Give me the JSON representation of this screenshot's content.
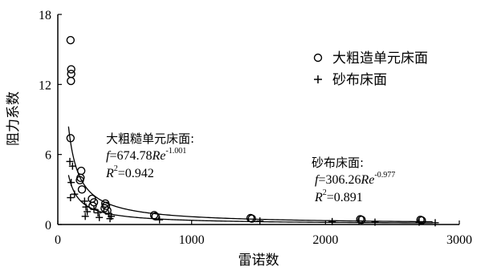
{
  "chart_data": {
    "type": "scatter",
    "xlabel": "雷诺数",
    "ylabel": "阻力系数",
    "xlim": [
      0,
      3000
    ],
    "ylim": [
      0,
      18
    ],
    "xticks": [
      0,
      1000,
      2000,
      3000
    ],
    "yticks": [
      0,
      6,
      12,
      18
    ],
    "xtick_labels": [
      "0",
      "1000",
      "2000",
      "3000"
    ],
    "ytick_labels": [
      "0",
      "6",
      "12",
      "18"
    ],
    "grid": false,
    "legend_position": "top-right",
    "series": [
      {
        "name": "大粗造单元床面",
        "marker": "circle",
        "points": [
          [
            95,
            15.8
          ],
          [
            100,
            13.3
          ],
          [
            100,
            12.9
          ],
          [
            98,
            12.3
          ],
          [
            95,
            7.4
          ],
          [
            175,
            4.6
          ],
          [
            170,
            4.0
          ],
          [
            165,
            3.8
          ],
          [
            180,
            3.0
          ],
          [
            255,
            2.2
          ],
          [
            270,
            1.9
          ],
          [
            260,
            1.6
          ],
          [
            355,
            1.8
          ],
          [
            360,
            1.6
          ],
          [
            350,
            1.4
          ],
          [
            370,
            1.2
          ],
          [
            720,
            0.8
          ],
          [
            730,
            0.7
          ],
          [
            1440,
            0.55
          ],
          [
            1450,
            0.5
          ],
          [
            2260,
            0.45
          ],
          [
            2270,
            0.4
          ],
          [
            2710,
            0.4
          ],
          [
            2720,
            0.35
          ]
        ]
      },
      {
        "name": "砂布床面",
        "marker": "plus",
        "points": [
          [
            90,
            5.4
          ],
          [
            110,
            5.0
          ],
          [
            100,
            3.6
          ],
          [
            125,
            2.6
          ],
          [
            95,
            2.3
          ],
          [
            200,
            2.0
          ],
          [
            210,
            1.5
          ],
          [
            220,
            1.1
          ],
          [
            205,
            0.7
          ],
          [
            270,
            1.3
          ],
          [
            300,
            1.0
          ],
          [
            310,
            0.6
          ],
          [
            380,
            0.9
          ],
          [
            400,
            0.7
          ],
          [
            390,
            0.5
          ],
          [
            760,
            0.4
          ],
          [
            1510,
            0.3
          ],
          [
            2050,
            0.25
          ],
          [
            2250,
            0.3
          ],
          [
            2370,
            0.2
          ],
          [
            2700,
            0.2
          ],
          [
            2820,
            0.15
          ]
        ]
      }
    ],
    "fits": [
      {
        "label": "大粗糙单元床面:",
        "coef": 674.78,
        "exponent": -1.001,
        "equation_prefix": "f=674.78",
        "equation_var": "Re",
        "equation_exp": "-1.001",
        "r2": "R²=0.942",
        "x_range": [
          80,
          2800
        ]
      },
      {
        "label": "砂布床面:",
        "coef": 306.26,
        "exponent": -0.977,
        "equation_prefix": "f=306.26",
        "equation_var": "Re",
        "equation_exp": "-0.977",
        "r2": "R²=0.891",
        "x_range": [
          80,
          2800
        ]
      }
    ]
  }
}
